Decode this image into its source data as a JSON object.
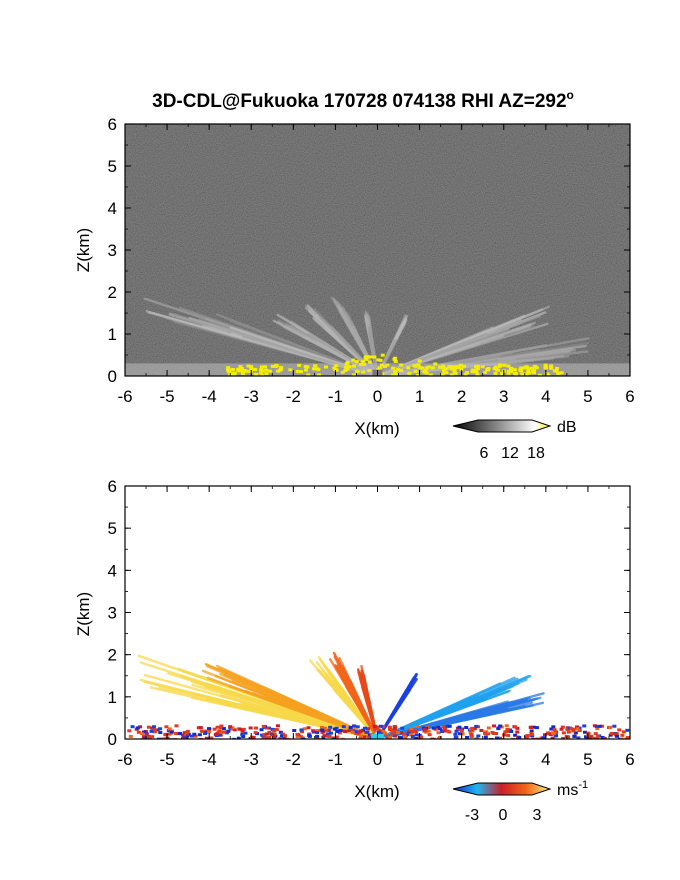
{
  "title": "3D-CDL@Fukuoka 170728 074138 RHI AZ=292",
  "title_sup": "o",
  "chart_data": [
    {
      "type": "heatmap",
      "panel": "top",
      "xlabel": "X(km)",
      "ylabel": "Z(km)",
      "xlim": [
        -6,
        6
      ],
      "ylim": [
        0,
        6
      ],
      "x_ticks": [
        -6,
        -5,
        -4,
        -3,
        -2,
        -1,
        0,
        1,
        2,
        3,
        4,
        5,
        6
      ],
      "y_ticks": [
        0,
        1,
        2,
        3,
        4,
        5,
        6
      ],
      "colorbar": {
        "unit": "dB",
        "ticks": [
          6,
          12,
          18
        ],
        "colors": [
          "#000000",
          "#ffffff",
          "#f6ee00"
        ]
      },
      "background_color": "#1a1a1a",
      "fans": [
        {
          "angle_deg": 162,
          "spread_deg": 6,
          "range_km": 6.0,
          "intensity": 0.55
        },
        {
          "angle_deg": 150,
          "spread_deg": 5,
          "range_km": 2.8,
          "intensity": 0.5
        },
        {
          "angle_deg": 135,
          "spread_deg": 6,
          "range_km": 2.4,
          "intensity": 0.55
        },
        {
          "angle_deg": 118,
          "spread_deg": 5,
          "range_km": 2.2,
          "intensity": 0.45
        },
        {
          "angle_deg": 100,
          "spread_deg": 4,
          "range_km": 1.6,
          "intensity": 0.45
        },
        {
          "angle_deg": 64,
          "spread_deg": 3,
          "range_km": 1.6,
          "intensity": 0.55
        },
        {
          "angle_deg": 20,
          "spread_deg": 6,
          "range_km": 4.4,
          "intensity": 0.55
        },
        {
          "angle_deg": 8,
          "spread_deg": 5,
          "range_km": 5.2,
          "intensity": 0.4
        }
      ],
      "ground_band_km": [
        0,
        0.3
      ],
      "yellow_band": {
        "x_km": [
          -3.6,
          4.4
        ],
        "z_km": [
          0.05,
          0.3
        ],
        "peak_z_km": 0.55
      }
    },
    {
      "type": "heatmap",
      "panel": "bottom",
      "xlabel": "X(km)",
      "ylabel": "Z(km)",
      "xlim": [
        -6,
        6
      ],
      "ylim": [
        0,
        6
      ],
      "x_ticks": [
        -6,
        -5,
        -4,
        -3,
        -2,
        -1,
        0,
        1,
        2,
        3,
        4,
        5,
        6
      ],
      "y_ticks": [
        0,
        1,
        2,
        3,
        4,
        5,
        6
      ],
      "colorbar": {
        "unit": "ms",
        "unit_sup": "-1",
        "ticks": [
          -3,
          0,
          3
        ],
        "colors": [
          "#0a2bd6",
          "#1fb6ee",
          "#c8202a",
          "#f26418",
          "#fbf07a"
        ]
      },
      "background_color": "#ffffff",
      "fans": [
        {
          "angle_deg": 164,
          "spread_deg": 7,
          "range_km": 6.0,
          "color": "#f7d84a"
        },
        {
          "angle_deg": 158,
          "spread_deg": 5,
          "range_km": 4.5,
          "color": "#f6a020"
        },
        {
          "angle_deg": 128,
          "spread_deg": 7,
          "range_km": 2.5,
          "color": "#f7d84a"
        },
        {
          "angle_deg": 118,
          "spread_deg": 6,
          "range_km": 2.3,
          "color": "#f26418"
        },
        {
          "angle_deg": 104,
          "spread_deg": 5,
          "range_km": 1.8,
          "color": "#e84a1a"
        },
        {
          "angle_deg": 58,
          "spread_deg": 3,
          "range_km": 1.8,
          "color": "#1a40e0"
        },
        {
          "angle_deg": 22,
          "spread_deg": 5,
          "range_km": 4.0,
          "color": "#1fa2ee"
        },
        {
          "angle_deg": 14,
          "spread_deg": 4,
          "range_km": 4.2,
          "color": "#2a7ae6"
        }
      ],
      "ground_band_km": [
        0,
        0.35
      ]
    }
  ]
}
